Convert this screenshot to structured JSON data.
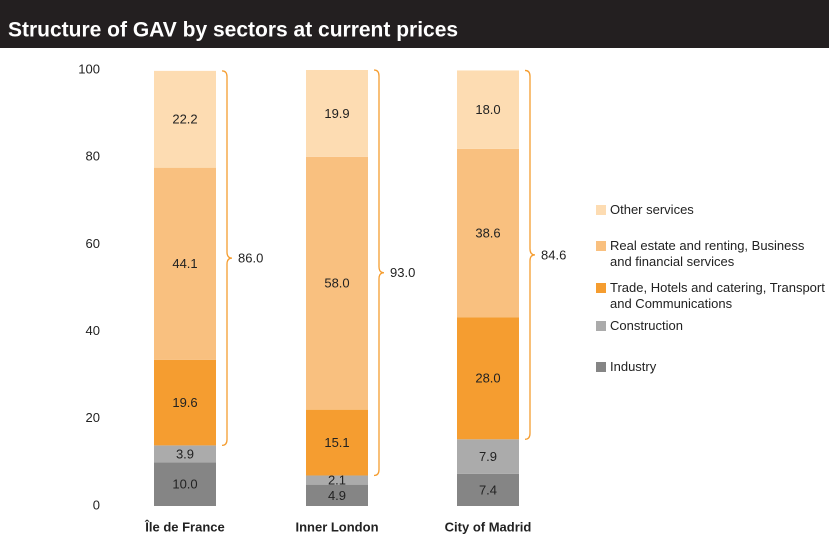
{
  "chart_data": {
    "type": "stacked_bar",
    "title": "Structure of GAV by sectors at current prices",
    "categories": [
      "Île de France",
      "Inner London",
      "City of Madrid"
    ],
    "series": [
      {
        "name": "Industry",
        "color": "#858585",
        "values": [
          10.0,
          4.9,
          7.4
        ],
        "value_labels": [
          "10.0",
          "4.9",
          "7.4"
        ]
      },
      {
        "name": "Construction",
        "color": "#ababab",
        "values": [
          3.9,
          2.1,
          7.9
        ],
        "value_labels": [
          "3.9",
          "2.1",
          "7.9"
        ]
      },
      {
        "name": "Trade, Hotels and catering, Transport and Communications",
        "color": "#f59d30",
        "values": [
          19.6,
          15.1,
          28.0
        ],
        "value_labels": [
          "19.6",
          "15.1",
          "28.0"
        ]
      },
      {
        "name": "Real estate and renting, Business and financial services",
        "color": "#f9c07f",
        "values": [
          44.1,
          58.0,
          38.6
        ],
        "value_labels": [
          "44.1",
          "58.0",
          "38.6"
        ]
      },
      {
        "name": "Other services",
        "color": "#fddcb2",
        "values": [
          22.2,
          19.9,
          18.0
        ],
        "value_labels": [
          "22.2",
          "19.9",
          "18.0"
        ]
      }
    ],
    "brace_totals": [
      86.0,
      93.0,
      84.6
    ],
    "brace_labels": [
      "86.0",
      "93.0",
      "84.6"
    ],
    "brace_color": "#f59d30",
    "ylim": [
      0,
      100
    ],
    "yticks": [
      0,
      20,
      40,
      60,
      80,
      100
    ],
    "grid": false
  }
}
